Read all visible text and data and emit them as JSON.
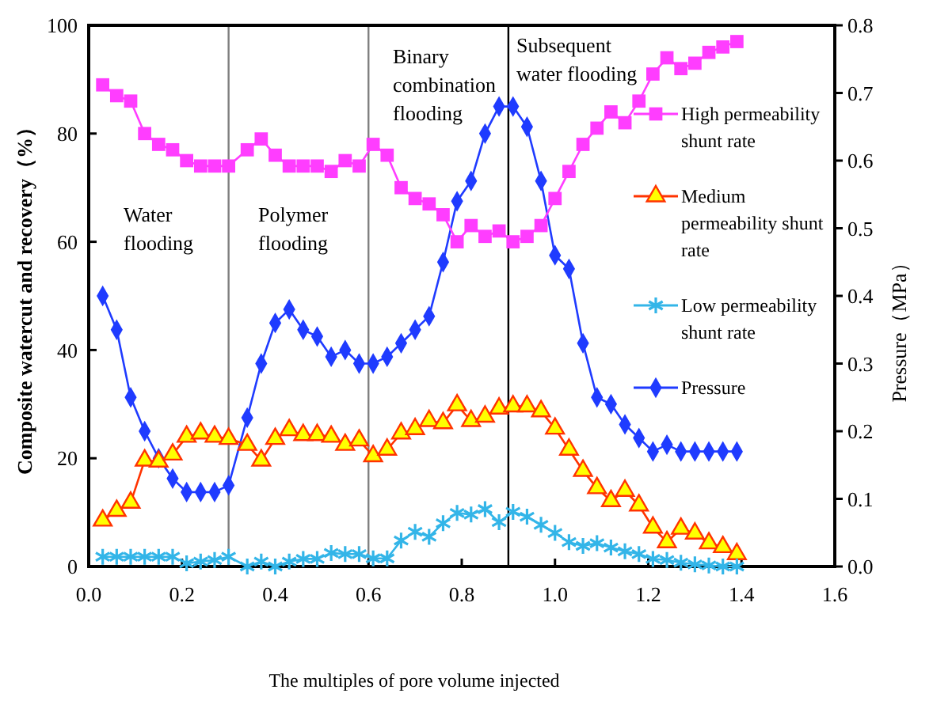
{
  "chart_data": {
    "type": "line",
    "xlabel": "The multiples of pore volume injected",
    "ylabel": "Composite watercut and recovery（%）",
    "y2label": "Pressure（MPa）",
    "x": [
      0.03,
      0.06,
      0.09,
      0.12,
      0.15,
      0.18,
      0.21,
      0.24,
      0.27,
      0.3,
      0.34,
      0.37,
      0.4,
      0.43,
      0.46,
      0.49,
      0.52,
      0.55,
      0.58,
      0.61,
      0.64,
      0.67,
      0.7,
      0.73,
      0.76,
      0.79,
      0.82,
      0.85,
      0.88,
      0.91,
      0.94,
      0.97,
      1.0,
      1.03,
      1.06,
      1.09,
      1.12,
      1.15,
      1.18,
      1.21,
      1.24,
      1.27,
      1.3,
      1.33,
      1.36,
      1.39
    ],
    "series": [
      {
        "name": "High permeability shunt rate",
        "color": "#ff3dff",
        "marker": "square",
        "values": [
          89,
          87,
          86,
          80,
          78,
          77,
          75,
          74,
          74,
          74,
          77,
          79,
          76,
          74,
          74,
          74,
          73,
          75,
          74,
          78,
          76,
          70,
          68,
          67,
          65,
          60,
          63,
          61,
          62,
          60,
          61,
          63,
          68,
          73,
          78,
          81,
          84,
          82,
          86,
          91,
          94,
          92,
          93,
          95,
          96,
          97
        ]
      },
      {
        "name": "Medium permeability shunt rate",
        "color": "#ff3300",
        "marker": "triangle",
        "values": [
          8.5,
          10.3,
          11.8,
          19.6,
          19.4,
          20.7,
          24,
          24.6,
          24,
          23.6,
          22.5,
          19.6,
          23.6,
          25.2,
          24.3,
          24.3,
          24,
          22.5,
          23.3,
          20.4,
          21.6,
          24.6,
          25.4,
          26.9,
          26.5,
          29.8,
          26.9,
          27.7,
          29.2,
          29.6,
          29.6,
          28.7,
          25.5,
          21.6,
          17.7,
          14.5,
          12.1,
          14,
          11.3,
          7.2,
          4.5,
          7,
          6.1,
          4.3,
          3.6,
          2.3
        ]
      },
      {
        "name": "Low permeability shunt rate",
        "color": "#33b5e8",
        "marker": "cross",
        "values": [
          1.8,
          1.8,
          1.8,
          1.8,
          1.8,
          1.8,
          0.6,
          0.9,
          1.2,
          1.8,
          0,
          0.9,
          0,
          0.9,
          1.4,
          1.4,
          2.5,
          2.3,
          2.3,
          1.5,
          1.5,
          4.8,
          6.4,
          5.5,
          8,
          9.9,
          9.6,
          10.6,
          8.2,
          10.1,
          9.2,
          7.7,
          6.2,
          4.5,
          3.8,
          4.3,
          3.5,
          2.8,
          2.3,
          1.4,
          1.2,
          0.7,
          0.4,
          0.2,
          0,
          0
        ]
      },
      {
        "name": "Pressure",
        "color": "#1f3bff",
        "marker": "diamond",
        "axis": "y2",
        "values": [
          0.4,
          0.35,
          0.25,
          0.2,
          0.16,
          0.13,
          0.11,
          0.11,
          0.11,
          0.12,
          0.22,
          0.3,
          0.36,
          0.38,
          0.35,
          0.34,
          0.31,
          0.32,
          0.3,
          0.3,
          0.31,
          0.33,
          0.35,
          0.37,
          0.45,
          0.54,
          0.57,
          0.64,
          0.68,
          0.68,
          0.65,
          0.57,
          0.46,
          0.44,
          0.33,
          0.25,
          0.24,
          0.21,
          0.19,
          0.17,
          0.18,
          0.17,
          0.17,
          0.17,
          0.17,
          0.17
        ]
      }
    ],
    "xlim": [
      0,
      1.6
    ],
    "xticks": [
      {
        "value": 0,
        "label": "0.0"
      },
      {
        "value": 0.2,
        "label": "0.2"
      },
      {
        "value": 0.4,
        "label": "0.4"
      },
      {
        "value": 0.6,
        "label": "0.6"
      },
      {
        "value": 0.8,
        "label": "0.8"
      },
      {
        "value": 1,
        "label": "1.0"
      },
      {
        "value": 1.2,
        "label": "1.2"
      },
      {
        "value": 1.4,
        "label": "1.4"
      },
      {
        "value": 1.6,
        "label": "1.6"
      }
    ],
    "ylim": [
      0,
      100
    ],
    "yticks": [
      0,
      20,
      40,
      60,
      80,
      100
    ],
    "y2lim": [
      0,
      0.8
    ],
    "y2ticks": [
      {
        "value": 0,
        "label": "0.0"
      },
      {
        "value": 0.1,
        "label": "0.1"
      },
      {
        "value": 0.2,
        "label": "0.2"
      },
      {
        "value": 0.3,
        "label": "0.3"
      },
      {
        "value": 0.4,
        "label": "0.4"
      },
      {
        "value": 0.5,
        "label": "0.5"
      },
      {
        "value": 0.6,
        "label": "0.6"
      },
      {
        "value": 0.7,
        "label": "0.7"
      },
      {
        "value": 0.8,
        "label": "0.8"
      }
    ],
    "ref_lines": [
      {
        "axis": "x",
        "value": 0.3,
        "color": "#808080"
      },
      {
        "axis": "x",
        "value": 0.6,
        "color": "#808080"
      },
      {
        "axis": "x",
        "value": 0.9,
        "color": "#000000"
      }
    ],
    "annotations": [
      "Water\nflooding",
      "Polymer\nflooding",
      "Binary\ncombination\nflooding",
      "Subsequent\nwater flooding"
    ],
    "legend": "right",
    "grid": false
  }
}
